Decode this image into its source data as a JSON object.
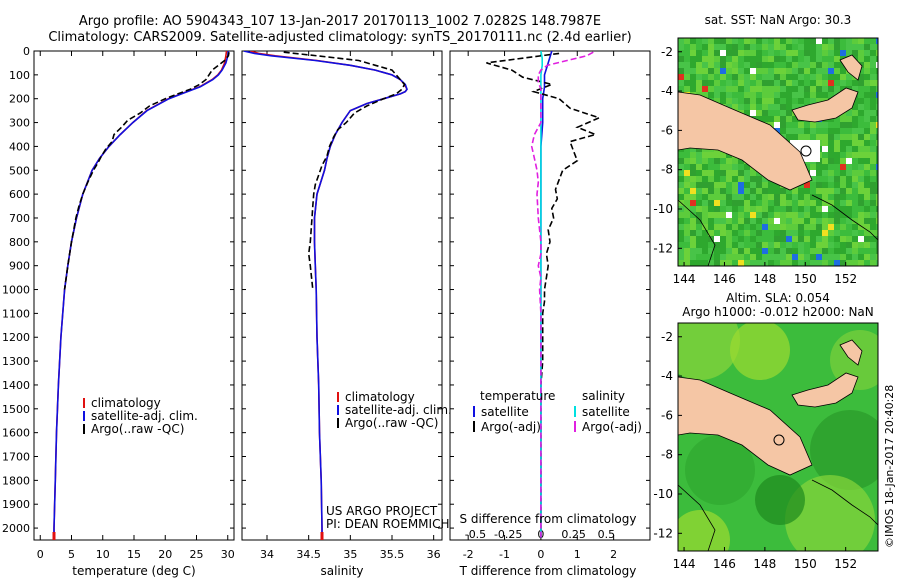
{
  "header": {
    "title1": "Argo profile: AO 5904343_107 13-Jan-2017 20170113_1002 7.0282S 148.7987E",
    "title2": "Climatology: CARS2009. Satellite-adjusted climatology: synTS_20170111.nc (2.4d earlier)"
  },
  "colors": {
    "clim": "#e01010",
    "sat": "#1010e0",
    "argo": "#000000",
    "sat_s": "#00e0e0",
    "argo_s": "#e020e0",
    "land": "#f5c6a5",
    "sea": "#38b838"
  },
  "depth_ticks": [
    "0",
    "100",
    "200",
    "300",
    "400",
    "500",
    "600",
    "700",
    "800",
    "900",
    "1000",
    "1100",
    "1200",
    "1300",
    "1400",
    "1500",
    "1600",
    "1700",
    "1800",
    "1900",
    "2000"
  ],
  "legend": {
    "clim": "climatology",
    "sat": "satellite-adj. clim.",
    "argo": "Argo(..raw -QC)"
  },
  "legend_diff": {
    "temp_head": "temperature",
    "sal_head": "salinity",
    "sat": "satellite",
    "argo": "Argo(-adj)"
  },
  "credit": {
    "line1": "US ARGO PROJECT",
    "line2": "PI: DEAN ROEMMICH"
  },
  "maps": {
    "sst_title": "sat. SST: NaN Argo: 30.3",
    "sla_title1": "Altim. SLA: 0.054",
    "sla_title2": "Argo h1000: -0.012 h2000: NaN",
    "lon_ticks": [
      "144",
      "146",
      "148",
      "150",
      "152"
    ],
    "lat_ticks": [
      "-2",
      "-4",
      "-6",
      "-8",
      "-10",
      "-12"
    ]
  },
  "stamp": "©IMOS 18-Jan-2017 20:40:28",
  "chart_data": [
    {
      "type": "line",
      "panel": "temperature",
      "xlabel": "temperature (deg C)",
      "xlim": [
        -1,
        31
      ],
      "ylim": [
        2050,
        0
      ],
      "xticks": [
        "0",
        "5",
        "10",
        "15",
        "20",
        "25",
        "30"
      ],
      "xtick_values": [
        0,
        5,
        10,
        15,
        20,
        25,
        30
      ],
      "series": [
        {
          "name": "climatology",
          "depth": [
            0,
            20,
            50,
            80,
            100,
            120,
            150,
            180,
            200,
            250,
            300,
            350,
            400,
            450,
            500,
            600,
            700,
            800,
            900,
            1000,
            1200,
            1400,
            1600,
            1800,
            2000,
            2040
          ],
          "values": [
            29.8,
            29.7,
            29.5,
            29.0,
            28.4,
            27.5,
            25.5,
            22.5,
            20.5,
            17.0,
            14.8,
            12.8,
            11.0,
            9.5,
            8.3,
            6.8,
            5.8,
            5.0,
            4.4,
            3.9,
            3.3,
            2.9,
            2.6,
            2.4,
            2.2,
            2.2
          ]
        },
        {
          "name": "satellite-adj. clim.",
          "depth": [
            0,
            20,
            50,
            80,
            100,
            120,
            150,
            180,
            200,
            250,
            300,
            350,
            400,
            450,
            500,
            600,
            700,
            800,
            900,
            1000,
            1200,
            1400,
            1600,
            1800,
            2000,
            2040
          ],
          "values": [
            30.1,
            30.0,
            29.7,
            29.1,
            28.5,
            27.6,
            25.6,
            22.6,
            20.6,
            17.1,
            14.8,
            12.8,
            11.0,
            9.5,
            8.3,
            6.8,
            5.8,
            5.0,
            4.4,
            3.9,
            3.3,
            2.9,
            2.6,
            2.4,
            2.2,
            2.2
          ]
        },
        {
          "name": "Argo(..raw -QC)",
          "depth": [
            5,
            20,
            40,
            60,
            80,
            100,
            120,
            140,
            160,
            180,
            200,
            230,
            260,
            290,
            320,
            350,
            380,
            410,
            440,
            470,
            500,
            550,
            600,
            650,
            700,
            800,
            900,
            1000
          ],
          "values": [
            30.2,
            30.1,
            29.5,
            28.5,
            27.5,
            27.0,
            26.5,
            25.5,
            24.0,
            22.0,
            20.0,
            17.5,
            16.0,
            14.0,
            13.0,
            11.8,
            11.5,
            10.5,
            9.8,
            9.2,
            8.5,
            7.6,
            6.8,
            6.2,
            5.7,
            5.0,
            4.4,
            3.9
          ]
        }
      ]
    },
    {
      "type": "line",
      "panel": "salinity",
      "xlabel": "salinity",
      "xlim": [
        33.7,
        36.1
      ],
      "ylim": [
        2050,
        0
      ],
      "xticks": [
        "34",
        "34.5",
        "35",
        "35.5",
        "36"
      ],
      "xtick_values": [
        34,
        34.5,
        35,
        35.5,
        36
      ],
      "series": [
        {
          "name": "climatology",
          "depth": [
            0,
            10,
            20,
            40,
            60,
            80,
            100,
            120,
            140,
            160,
            170,
            180,
            200,
            220,
            250,
            300,
            350,
            400,
            450,
            500,
            600,
            700,
            800,
            900,
            1000,
            1200,
            1400,
            1600,
            1800,
            2000,
            2040
          ],
          "values": [
            33.8,
            33.9,
            34.1,
            34.6,
            35.0,
            35.3,
            35.5,
            35.6,
            35.65,
            35.68,
            35.66,
            35.6,
            35.4,
            35.2,
            35.0,
            34.9,
            34.82,
            34.76,
            34.72,
            34.69,
            34.6,
            34.57,
            34.57,
            34.58,
            34.59,
            34.6,
            34.62,
            34.63,
            34.65,
            34.66,
            34.66
          ]
        },
        {
          "name": "satellite-adj. clim.",
          "depth": [
            0,
            10,
            20,
            40,
            60,
            80,
            100,
            120,
            140,
            160,
            170,
            180,
            200,
            220,
            250,
            300,
            350,
            400,
            450,
            500,
            600,
            700,
            800,
            900,
            1000,
            1200,
            1400,
            1600,
            1800,
            2000,
            2040
          ],
          "values": [
            33.72,
            33.85,
            34.05,
            34.58,
            35.0,
            35.3,
            35.5,
            35.6,
            35.66,
            35.68,
            35.66,
            35.6,
            35.4,
            35.2,
            35.0,
            34.9,
            34.82,
            34.76,
            34.72,
            34.69,
            34.6,
            34.57,
            34.57,
            34.58,
            34.59,
            34.6,
            34.62,
            34.63,
            34.65,
            34.66,
            34.66
          ]
        },
        {
          "name": "Argo(..raw -QC)",
          "depth": [
            5,
            20,
            40,
            60,
            80,
            100,
            120,
            140,
            160,
            180,
            200,
            230,
            260,
            300,
            330,
            360,
            400,
            440,
            480,
            520,
            560,
            600,
            650,
            700,
            800,
            850,
            900,
            1000
          ],
          "values": [
            34.2,
            34.6,
            35.1,
            35.3,
            35.5,
            35.55,
            35.6,
            35.65,
            35.62,
            35.55,
            35.4,
            35.2,
            35.05,
            34.95,
            34.85,
            34.8,
            34.75,
            34.72,
            34.66,
            34.62,
            34.58,
            34.56,
            34.55,
            34.54,
            34.52,
            34.5,
            34.52,
            34.55
          ]
        }
      ]
    },
    {
      "type": "line",
      "panel": "difference",
      "xlabel": "T difference from climatology",
      "xlabel2": "S difference from climatology",
      "xlim": [
        -2.5,
        3.0
      ],
      "ylim": [
        2050,
        0
      ],
      "xticks": [
        "-2",
        "-1",
        "0",
        "1",
        "2"
      ],
      "xtick_values": [
        -2,
        -1,
        0,
        1,
        2
      ],
      "s_ticks": [
        "-0.5",
        "-0.25",
        "0",
        "0.25",
        "0.5"
      ],
      "s_tick_values": [
        -0.5,
        -0.25,
        0,
        0.25,
        0.5
      ],
      "series": [
        {
          "name": "temperature satellite",
          "depth": [
            0,
            50,
            100,
            150,
            200,
            250,
            300,
            400,
            500,
            700,
            900,
            1100,
            1400,
            1700,
            2000,
            2040
          ],
          "values": [
            0.3,
            0.2,
            0.1,
            0.1,
            0.05,
            0.05,
            0.05,
            0,
            0,
            0,
            0,
            0,
            0,
            0,
            0,
            0
          ]
        },
        {
          "name": "temperature Argo(-adj)",
          "depth": [
            10,
            30,
            50,
            80,
            110,
            140,
            170,
            200,
            240,
            280,
            320,
            350,
            380,
            420,
            460,
            500,
            540,
            580,
            620,
            660,
            700,
            750,
            800,
            850,
            900,
            950,
            1000,
            1050,
            1100,
            1200,
            1300,
            1400,
            1500,
            1600,
            1700,
            1800,
            1900,
            2000,
            2040
          ],
          "values": [
            0.5,
            -0.5,
            -1.5,
            -0.8,
            -0.5,
            0.3,
            -0.2,
            0.5,
            0.8,
            1.6,
            1.0,
            1.5,
            0.8,
            0.9,
            1.0,
            0.6,
            0.5,
            0.4,
            0.45,
            0.3,
            0.35,
            0.2,
            0.25,
            0.15,
            0.2,
            0.15,
            0.1,
            0.1,
            0.05,
            0.05,
            0.05,
            0.0,
            0.0,
            0.0,
            0.0,
            0.0,
            0.0,
            0.0,
            0.0
          ]
        },
        {
          "name": "salinity satellite",
          "depth": [
            0,
            30,
            60,
            100,
            150,
            200,
            300,
            500,
            800,
            1100,
            1500,
            2040
          ],
          "values": [
            0.0,
            0.01,
            0.01,
            0.0,
            0.0,
            0.0,
            0.0,
            0.0,
            0.0,
            0.0,
            0.0,
            0.0
          ]
        },
        {
          "name": "salinity Argo(-adj)",
          "depth": [
            5,
            20,
            40,
            60,
            80,
            100,
            130,
            160,
            200,
            250,
            300,
            350,
            400,
            450,
            500,
            550,
            600,
            700,
            800,
            850,
            900,
            950,
            1000,
            1100,
            1200,
            1400,
            1600,
            1800,
            2000,
            2040
          ],
          "values": [
            0.4,
            0.35,
            0.2,
            0.05,
            0.0,
            -0.02,
            -0.02,
            0.0,
            0.0,
            0.0,
            0.0,
            -0.05,
            -0.07,
            -0.05,
            -0.03,
            -0.02,
            -0.03,
            -0.02,
            0.0,
            0.0,
            -0.02,
            0.0,
            -0.01,
            0.0,
            0.0,
            0.0,
            0.0,
            0.0,
            0.0,
            0.0
          ]
        }
      ]
    }
  ]
}
